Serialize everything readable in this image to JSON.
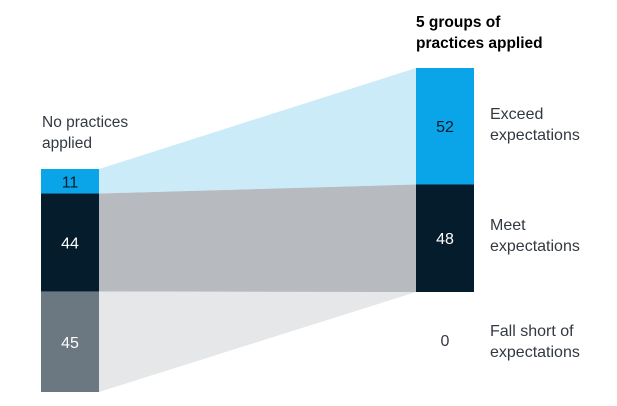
{
  "chart_data": {
    "type": "bar",
    "categories": [
      "No practices applied",
      "5 groups of practices applied"
    ],
    "series": [
      {
        "name": "Exceed expectations",
        "values": [
          11,
          52
        ],
        "color": "#0aa4e9",
        "band_color": "#ccebf8"
      },
      {
        "name": "Meet expectations",
        "values": [
          44,
          48
        ],
        "color": "#051c2c",
        "band_color": "#b7bbbf"
      },
      {
        "name": "Fall short of expectations",
        "values": [
          45,
          0
        ],
        "color": "#6b7781",
        "band_color": "#e6e7e8"
      }
    ],
    "left_label": [
      "No practices",
      "applied"
    ],
    "right_label": [
      "5 groups of",
      "practices applied"
    ],
    "series_labels": [
      [
        "Exceed",
        "expectations"
      ],
      [
        "Meet",
        "expectations"
      ],
      [
        "Fall short of",
        "expectations"
      ]
    ],
    "stacked": true,
    "ylim": [
      0,
      100
    ],
    "legend": "right",
    "grid": false
  }
}
